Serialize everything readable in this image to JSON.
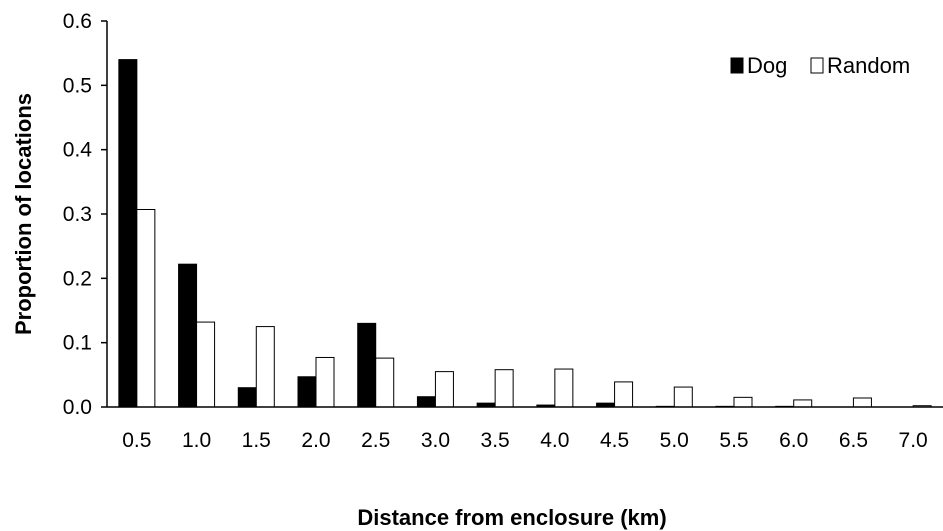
{
  "chart_data": {
    "type": "bar",
    "title": "",
    "xlabel": "Distance from enclosure (km)",
    "ylabel": "Proportion of locations",
    "categories": [
      "0.5",
      "1.0",
      "1.5",
      "2.0",
      "2.5",
      "3.0",
      "3.5",
      "4.0",
      "4.5",
      "5.0",
      "5.5",
      "6.0",
      "6.5",
      "7.0"
    ],
    "series": [
      {
        "name": "Dog",
        "color": "#000000",
        "values": [
          0.54,
          0.222,
          0.03,
          0.047,
          0.13,
          0.016,
          0.006,
          0.003,
          0.006,
          0.001,
          0.001,
          0.001,
          0.0,
          0.0
        ]
      },
      {
        "name": "Random",
        "color": "#ffffff",
        "values": [
          0.307,
          0.132,
          0.125,
          0.077,
          0.076,
          0.055,
          0.058,
          0.059,
          0.039,
          0.031,
          0.015,
          0.011,
          0.014,
          0.002
        ]
      }
    ],
    "ylim": [
      0,
      0.6
    ],
    "yticks": [
      "0.0",
      "0.1",
      "0.2",
      "0.3",
      "0.4",
      "0.5",
      "0.6"
    ],
    "grid": false,
    "legend_position": "top-right"
  }
}
